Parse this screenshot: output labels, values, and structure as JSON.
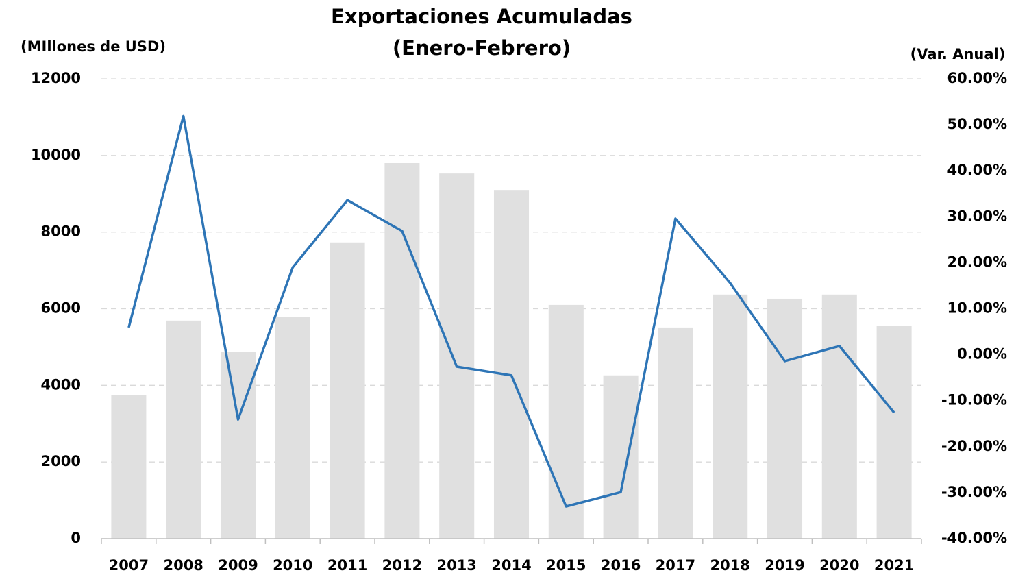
{
  "chart_data": {
    "type": "bar_line",
    "title": "Exportaciones Acumuladas",
    "subtitle": "(Enero-Febrero)",
    "y_label": "(MIllones de USD)",
    "y2_label": "(Var. Anual)",
    "categories": [
      "2007",
      "2008",
      "2009",
      "2010",
      "2011",
      "2012",
      "2013",
      "2014",
      "2015",
      "2016",
      "2017",
      "2018",
      "2019",
      "2020",
      "2021"
    ],
    "series": [
      {
        "name": "Exportaciones",
        "type": "bar",
        "color": "#e0e0e0",
        "values": [
          3740,
          5690,
          4880,
          5790,
          7730,
          9800,
          9530,
          9100,
          6100,
          4260,
          5510,
          6370,
          6260,
          6370,
          5560
        ]
      },
      {
        "name": "Var. Anual",
        "type": "line",
        "axis": "y2",
        "color": "#2e75b6",
        "values": [
          5.9,
          51.9,
          -14.1,
          19.0,
          33.6,
          26.9,
          -2.6,
          -4.5,
          -33.0,
          -29.9,
          29.6,
          15.6,
          -1.4,
          1.9,
          -12.6
        ]
      }
    ],
    "ylim": [
      0,
      12000
    ],
    "yticks": [
      0,
      2000,
      4000,
      6000,
      8000,
      10000,
      12000
    ],
    "y2lim": [
      -40,
      60
    ],
    "y2ticks": [
      {
        "value": -40,
        "label": "-40.00%"
      },
      {
        "value": -30,
        "label": "-30.00%"
      },
      {
        "value": -20,
        "label": "-20.00%"
      },
      {
        "value": -10,
        "label": "-10.00%"
      },
      {
        "value": 0,
        "label": "0.00%"
      },
      {
        "value": 10,
        "label": "10.00%"
      },
      {
        "value": 20,
        "label": "20.00%"
      },
      {
        "value": 30,
        "label": "30.00%"
      },
      {
        "value": 40,
        "label": "40.00%"
      },
      {
        "value": 50,
        "label": "50.00%"
      },
      {
        "value": 60,
        "label": "60.00%"
      }
    ],
    "grid": true
  }
}
